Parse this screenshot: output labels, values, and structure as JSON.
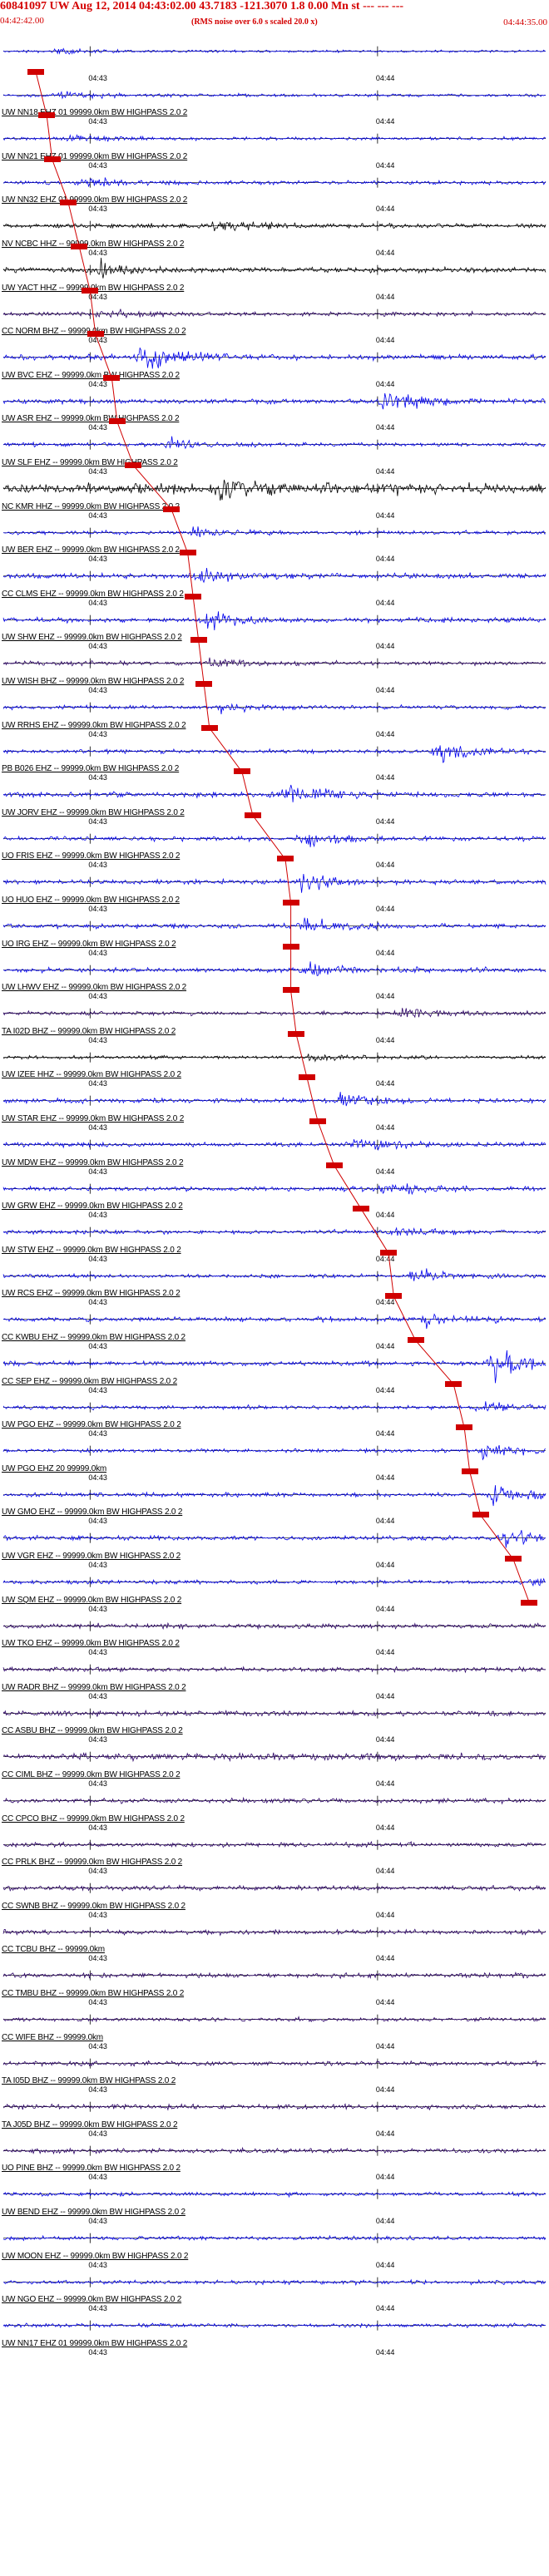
{
  "header": {
    "title": "60841097 UW Aug 12, 2014 04:43:02.00   43.7183 -121.3070   1.8 0.00 Mn st --- ---  ---",
    "start_time": "04:42:42.00",
    "note": "(RMS noise over 6.0 s scaled 20.0 x)",
    "end_time": "04:44:35.00"
  },
  "time_ticks": [
    "04:43",
    "04:44"
  ],
  "colors": {
    "blue": "#0000ee",
    "black": "#000000",
    "purple": "#2a0066",
    "pick": "#d00000",
    "header": "#d40000"
  },
  "traces": [
    {
      "label": "",
      "color": "blue",
      "amp": 0.18,
      "evt": 0.1,
      "evtAmp": 0.3,
      "pick": 0.06
    },
    {
      "label": "UW NN18 EHZ 01 99999.0km BW  HIGHPASS  2.0  2",
      "color": "blue",
      "amp": 0.25,
      "evt": 0.1,
      "evtAmp": 0.5,
      "pick": 0.08
    },
    {
      "label": "UW NN21 EHZ 01 99999.0km BW  HIGHPASS  2.0  2",
      "color": "blue",
      "amp": 0.25,
      "evt": 0.12,
      "evtAmp": 0.5,
      "pick": 0.09
    },
    {
      "label": "UW NN32 EHZ 01 99999.0km BW  HIGHPASS  2.0  2",
      "color": "blue",
      "amp": 0.3,
      "evt": 0.14,
      "evtAmp": 0.9,
      "pick": 0.12
    },
    {
      "label": "NV NCBC HHZ -- 99999.0km BW  HIGHPASS  2.0  2",
      "color": "black",
      "amp": 0.35,
      "evt": 0.38,
      "evtAmp": 1.0,
      "pick": 0.14
    },
    {
      "label": "UW YACT HHZ -- 99999.0km BW  HIGHPASS  2.0  2",
      "color": "black",
      "amp": 0.4,
      "evt": 0.18,
      "evtAmp": 1.2,
      "pick": 0.16
    },
    {
      "label": "CC NORM BHZ -- 99999.0km BW  HIGHPASS  2.0  2",
      "color": "purple",
      "amp": 0.3,
      "evt": 0.18,
      "evtAmp": 0.8,
      "pick": 0.17
    },
    {
      "label": "UW BVC EHZ -- 99999.0km BW  HIGHPASS  2.0  2",
      "color": "blue",
      "amp": 0.4,
      "evt": 0.25,
      "evtAmp": 2.4,
      "pick": 0.2
    },
    {
      "label": "UW ASR EHZ -- 99999.0km BW  HIGHPASS  2.0  2",
      "color": "blue",
      "amp": 0.35,
      "evt": 0.7,
      "evtAmp": 2.0,
      "pick": 0.21
    },
    {
      "label": "UW SLF EHZ -- 99999.0km BW  HIGHPASS  2.0  2",
      "color": "blue",
      "amp": 0.3,
      "evt": 0.3,
      "evtAmp": 0.9,
      "pick": 0.24
    },
    {
      "label": "NC KMR HHZ -- 99999.0km BW  HIGHPASS  2.0  2",
      "color": "black",
      "amp": 0.8,
      "evt": 0.4,
      "evtAmp": 1.4,
      "pick": 0.31
    },
    {
      "label": "UW BER EHZ -- 99999.0km BW  HIGHPASS  2.0  2",
      "color": "blue",
      "amp": 0.3,
      "evt": 0.35,
      "evtAmp": 0.8,
      "pick": 0.34
    },
    {
      "label": "CC CLMS EHZ -- 99999.0km BW  HIGHPASS  2.0  2",
      "color": "blue",
      "amp": 0.4,
      "evt": 0.36,
      "evtAmp": 0.9,
      "pick": 0.35
    },
    {
      "label": "UW SHW EHZ -- 99999.0km BW  HIGHPASS  2.0  2",
      "color": "blue",
      "amp": 0.35,
      "evt": 0.37,
      "evtAmp": 1.3,
      "pick": 0.36
    },
    {
      "label": "UW WISH BHZ -- 99999.0km BW  HIGHPASS  2.0  2",
      "color": "purple",
      "amp": 0.3,
      "evt": 0.38,
      "evtAmp": 0.8,
      "pick": 0.37
    },
    {
      "label": "UW RRHS EHZ -- 99999.0km BW  HIGHPASS  2.0  2",
      "color": "blue",
      "amp": 0.3,
      "evt": 0.4,
      "evtAmp": 0.8,
      "pick": 0.38
    },
    {
      "label": "PB B026 EHZ -- 99999.0km BW  HIGHPASS  2.0  2",
      "color": "blue",
      "amp": 0.3,
      "evt": 0.8,
      "evtAmp": 1.8,
      "pick": 0.44
    },
    {
      "label": "UW JORV EHZ -- 99999.0km BW  HIGHPASS  2.0  2",
      "color": "blue",
      "amp": 0.4,
      "evt": 0.52,
      "evtAmp": 1.8,
      "pick": 0.46
    },
    {
      "label": "UO FRIS EHZ -- 99999.0km BW  HIGHPASS  2.0  2",
      "color": "blue",
      "amp": 0.35,
      "evt": 0.55,
      "evtAmp": 1.3,
      "pick": 0.52
    },
    {
      "label": "UO HUO EHZ -- 99999.0km BW  HIGHPASS  2.0  2",
      "color": "blue",
      "amp": 0.35,
      "evt": 0.55,
      "evtAmp": 1.3,
      "pick": 0.53
    },
    {
      "label": "UO IRG EHZ -- 99999.0km BW  HIGHPASS  2.0  2",
      "color": "blue",
      "amp": 0.35,
      "evt": 0.55,
      "evtAmp": 1.3,
      "pick": 0.53
    },
    {
      "label": "UW LHWV EHZ -- 99999.0km BW  HIGHPASS  2.0  2",
      "color": "blue",
      "amp": 0.35,
      "evt": 0.55,
      "evtAmp": 1.2,
      "pick": 0.53
    },
    {
      "label": "TA I02D BHZ -- 99999.0km BW  HIGHPASS  2.0  2",
      "color": "purple",
      "amp": 0.3,
      "evt": 0.73,
      "evtAmp": 0.8,
      "pick": 0.54
    },
    {
      "label": "UW IZEE HHZ -- 99999.0km BW  HIGHPASS  2.0  2",
      "color": "black",
      "amp": 0.25,
      "evt": 0.56,
      "evtAmp": 0.9,
      "pick": 0.56
    },
    {
      "label": "UW STAR EHZ -- 99999.0km BW  HIGHPASS  2.0  2",
      "color": "blue",
      "amp": 0.35,
      "evt": 0.62,
      "evtAmp": 0.9,
      "pick": 0.58
    },
    {
      "label": "UW MDW EHZ -- 99999.0km BW  HIGHPASS  2.0  2",
      "color": "blue",
      "amp": 0.35,
      "evt": 0.64,
      "evtAmp": 1.1,
      "pick": 0.61
    },
    {
      "label": "UW GRW EHZ -- 99999.0km BW  HIGHPASS  2.0  2",
      "color": "blue",
      "amp": 0.35,
      "evt": 0.7,
      "evtAmp": 1.0,
      "pick": 0.66
    },
    {
      "label": "UW STW EHZ -- 99999.0km BW  HIGHPASS  2.0  2",
      "color": "blue",
      "amp": 0.3,
      "evt": 0.72,
      "evtAmp": 0.9,
      "pick": 0.71
    },
    {
      "label": "UW RCS EHZ -- 99999.0km BW  HIGHPASS  2.0  2",
      "color": "blue",
      "amp": 0.3,
      "evt": 0.75,
      "evtAmp": 1.0,
      "pick": 0.72
    },
    {
      "label": "CC KWBU EHZ -- 99999.0km BW  HIGHPASS  2.0  2",
      "color": "blue",
      "amp": 0.35,
      "evt": 0.78,
      "evtAmp": 0.8,
      "pick": 0.76
    },
    {
      "label": "CC SEP EHZ -- 99999.0km BW  HIGHPASS  2.0  2",
      "color": "blue",
      "amp": 0.35,
      "evt": 0.9,
      "evtAmp": 2.6,
      "pick": 0.83
    },
    {
      "label": "UW PGO EHZ -- 99999.0km BW  HIGHPASS  2.0  2",
      "color": "blue",
      "amp": 0.3,
      "evt": 0.88,
      "evtAmp": 0.8,
      "pick": 0.85
    },
    {
      "label": "UW PGO EHZ 20 99999.0km",
      "color": "blue",
      "amp": 0.3,
      "evt": 0.88,
      "evtAmp": 1.2,
      "pick": 0.86
    },
    {
      "label": "UW GMO EHZ -- 99999.0km BW  HIGHPASS  2.0  2",
      "color": "blue",
      "amp": 0.35,
      "evt": 0.9,
      "evtAmp": 1.4,
      "pick": 0.88
    },
    {
      "label": "UW VGR EHZ -- 99999.0km BW  HIGHPASS  2.0  2",
      "color": "blue",
      "amp": 0.35,
      "evt": 0.92,
      "evtAmp": 1.2,
      "pick": 0.94
    },
    {
      "label": "UW SQM EHZ -- 99999.0km BW  HIGHPASS  2.0  2",
      "color": "blue",
      "amp": 0.3,
      "evt": 0.98,
      "evtAmp": 0.6,
      "pick": 0.97
    },
    {
      "label": "UW TKO EHZ -- 99999.0km BW  HIGHPASS  2.0  2",
      "color": "purple",
      "amp": 0.35,
      "evt": 0,
      "evtAmp": 0,
      "pick": -1
    },
    {
      "label": "UW RADR BHZ -- 99999.0km BW  HIGHPASS  2.0  2",
      "color": "purple",
      "amp": 0.35,
      "evt": 0,
      "evtAmp": 0,
      "pick": -1
    },
    {
      "label": "CC ASBU BHZ -- 99999.0km BW  HIGHPASS  2.0  2",
      "color": "purple",
      "amp": 0.4,
      "evt": 0,
      "evtAmp": 0,
      "pick": -1
    },
    {
      "label": "CC CIML BHZ -- 99999.0km BW  HIGHPASS  2.0  2",
      "color": "purple",
      "amp": 0.5,
      "evt": 0,
      "evtAmp": 0,
      "pick": -1
    },
    {
      "label": "CC CPCO BHZ -- 99999.0km BW  HIGHPASS  2.0  2",
      "color": "purple",
      "amp": 0.35,
      "evt": 0,
      "evtAmp": 0,
      "pick": -1
    },
    {
      "label": "CC PRLK BHZ -- 99999.0km BW  HIGHPASS  2.0  2",
      "color": "purple",
      "amp": 0.35,
      "evt": 0,
      "evtAmp": 0,
      "pick": -1
    },
    {
      "label": "CC SWNB BHZ -- 99999.0km BW  HIGHPASS  2.0  2",
      "color": "purple",
      "amp": 0.35,
      "evt": 0,
      "evtAmp": 0,
      "pick": -1
    },
    {
      "label": "CC TCBU BHZ -- 99999.0km",
      "color": "purple",
      "amp": 0.35,
      "evt": 0,
      "evtAmp": 0,
      "pick": -1
    },
    {
      "label": "CC TMBU BHZ -- 99999.0km BW  HIGHPASS  2.0  2",
      "color": "purple",
      "amp": 0.35,
      "evt": 0,
      "evtAmp": 0,
      "pick": -1
    },
    {
      "label": "CC WIFE BHZ -- 99999.0km",
      "color": "purple",
      "amp": 0.3,
      "evt": 0,
      "evtAmp": 0,
      "pick": -1
    },
    {
      "label": "TA I05D BHZ -- 99999.0km BW  HIGHPASS  2.0  2",
      "color": "purple",
      "amp": 0.35,
      "evt": 0,
      "evtAmp": 0,
      "pick": -1
    },
    {
      "label": "TA J05D BHZ -- 99999.0km BW  HIGHPASS  2.0  2",
      "color": "purple",
      "amp": 0.35,
      "evt": 0,
      "evtAmp": 0,
      "pick": -1
    },
    {
      "label": "UO PINE BHZ -- 99999.0km BW  HIGHPASS  2.0  2",
      "color": "purple",
      "amp": 0.35,
      "evt": 0,
      "evtAmp": 0,
      "pick": -1
    },
    {
      "label": "UW BEND EHZ -- 99999.0km BW  HIGHPASS  2.0  2",
      "color": "blue",
      "amp": 0.3,
      "evt": 0,
      "evtAmp": 0,
      "pick": -1
    },
    {
      "label": "UW MOON EHZ -- 99999.0km BW  HIGHPASS  2.0  2",
      "color": "blue",
      "amp": 0.3,
      "evt": 0,
      "evtAmp": 0,
      "pick": -1
    },
    {
      "label": "UW NGO EHZ -- 99999.0km BW  HIGHPASS  2.0  2",
      "color": "blue",
      "amp": 0.3,
      "evt": 0,
      "evtAmp": 0,
      "pick": -1
    },
    {
      "label": "UW NN17 EHZ 01 99999.0km BW  HIGHPASS  2.0  2",
      "color": "blue",
      "amp": 0.3,
      "evt": 0,
      "evtAmp": 0,
      "pick": -1
    }
  ]
}
